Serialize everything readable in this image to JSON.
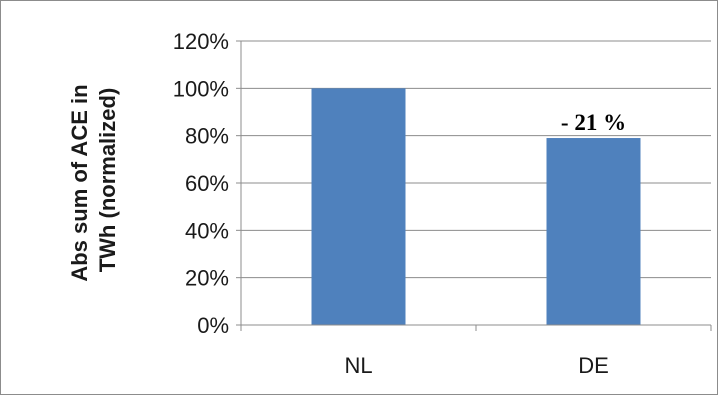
{
  "chart_data": {
    "type": "bar",
    "categories": [
      "NL",
      "DE"
    ],
    "values": [
      100,
      79
    ],
    "ylabel_lines": [
      "Abs sum of ACE in",
      "TWh (normalized)"
    ],
    "xlabel": "",
    "ylim": [
      0,
      120
    ],
    "yticks": [
      0,
      20,
      40,
      60,
      80,
      100,
      120
    ],
    "ytick_labels": [
      "0%",
      "20%",
      "40%",
      "60%",
      "80%",
      "100%",
      "120%"
    ],
    "annotations": [
      {
        "category": "DE",
        "text": "- 21 %"
      }
    ],
    "grid": true,
    "legend": "none",
    "bar_color": "#4f81bd",
    "grid_color": "#8c8c8c"
  }
}
